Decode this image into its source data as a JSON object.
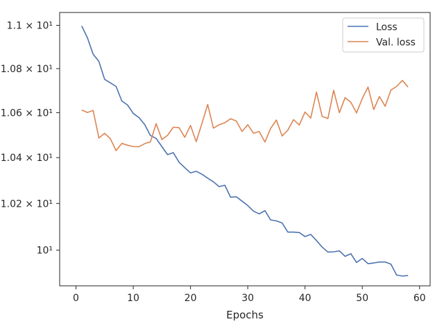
{
  "chart_data": {
    "type": "line",
    "xlabel": "Epochs",
    "ylabel": "",
    "title": "",
    "xlim": [
      -2.85,
      61.85
    ],
    "ylim": [
      9.85,
      11.06
    ],
    "yscale": "log",
    "grid": false,
    "legend_position": "top-right",
    "x_ticks": [
      {
        "value": 0,
        "label": "0"
      },
      {
        "value": 10,
        "label": "10"
      },
      {
        "value": 20,
        "label": "20"
      },
      {
        "value": 30,
        "label": "30"
      },
      {
        "value": 40,
        "label": "40"
      },
      {
        "value": 50,
        "label": "50"
      },
      {
        "value": 60,
        "label": "60"
      }
    ],
    "y_ticks": [
      {
        "value": 10.0,
        "label": "10¹"
      },
      {
        "value": 10.2,
        "label": "1.02 × 10¹"
      },
      {
        "value": 10.4,
        "label": "1.04 × 10¹"
      },
      {
        "value": 10.6,
        "label": "1.06 × 10¹"
      },
      {
        "value": 10.8,
        "label": "1.08 × 10¹"
      },
      {
        "value": 11.0,
        "label": "1.1 × 10¹"
      }
    ],
    "x": [
      1,
      2,
      3,
      4,
      5,
      6,
      7,
      8,
      9,
      10,
      11,
      12,
      13,
      14,
      15,
      16,
      17,
      18,
      19,
      20,
      21,
      22,
      23,
      24,
      25,
      26,
      27,
      28,
      29,
      30,
      31,
      32,
      33,
      34,
      35,
      36,
      37,
      38,
      39,
      40,
      41,
      42,
      43,
      44,
      45,
      46,
      47,
      48,
      49,
      50,
      51,
      52,
      53,
      54,
      55,
      56,
      57,
      58
    ],
    "series": [
      {
        "name": "Loss",
        "color": "#4c72b0",
        "values": [
          10.997,
          10.942,
          10.866,
          10.833,
          10.751,
          10.735,
          10.719,
          10.653,
          10.635,
          10.597,
          10.578,
          10.547,
          10.498,
          10.485,
          10.449,
          10.413,
          10.422,
          10.38,
          10.356,
          10.333,
          10.34,
          10.327,
          10.31,
          10.294,
          10.273,
          10.279,
          10.227,
          10.229,
          10.21,
          10.191,
          10.167,
          10.155,
          10.169,
          10.129,
          10.125,
          10.116,
          10.077,
          10.077,
          10.075,
          10.058,
          10.067,
          10.041,
          10.013,
          9.992,
          9.993,
          9.997,
          9.974,
          9.985,
          9.948,
          9.965,
          9.943,
          9.946,
          9.95,
          9.95,
          9.941,
          9.895,
          9.891,
          9.893
        ]
      },
      {
        "name": "Val. loss",
        "color": "#dd8452",
        "values": [
          10.612,
          10.601,
          10.61,
          10.487,
          10.508,
          10.484,
          10.431,
          10.463,
          10.455,
          10.449,
          10.448,
          10.462,
          10.47,
          10.551,
          10.48,
          10.499,
          10.535,
          10.533,
          10.49,
          10.543,
          10.471,
          10.552,
          10.637,
          10.531,
          10.546,
          10.555,
          10.573,
          10.563,
          10.516,
          10.546,
          10.508,
          10.516,
          10.469,
          10.53,
          10.567,
          10.496,
          10.522,
          10.569,
          10.545,
          10.603,
          10.576,
          10.693,
          10.583,
          10.574,
          10.701,
          10.6,
          10.668,
          10.647,
          10.599,
          10.664,
          10.716,
          10.614,
          10.673,
          10.629,
          10.702,
          10.719,
          10.746,
          10.716
        ]
      }
    ]
  }
}
